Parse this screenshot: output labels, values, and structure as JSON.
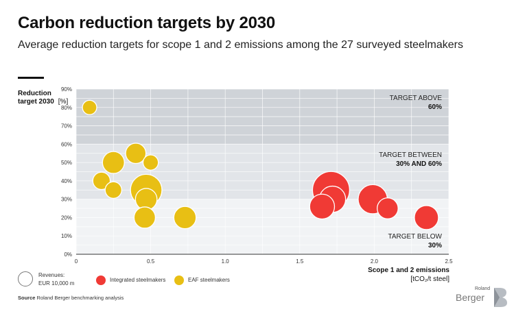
{
  "header": {
    "title": "Carbon reduction targets by 2030",
    "subtitle": "Average reduction targets for scope 1 and 2 emissions among the 27 surveyed steelmakers"
  },
  "chart_data": {
    "type": "scatter",
    "ylabel_bold": "Reduction target 2030",
    "ylabel_unit": "[%]",
    "xlabel_line1": "Scope 1 and 2 emissions",
    "xlabel_line2": "[tCO₂/t steel]",
    "xlim": [
      0,
      2.5
    ],
    "ylim": [
      0,
      90
    ],
    "x_ticks": [
      "0",
      "0.5",
      "1.0",
      "1.5",
      "2.0",
      "2.5"
    ],
    "y_ticks": [
      "0%",
      "10%",
      "20%",
      "30%",
      "40%",
      "50%",
      "60%",
      "70%",
      "80%",
      "90%"
    ],
    "grid": true,
    "bands": [
      {
        "from": 60,
        "to": 90,
        "line1": "TARGET ABOVE",
        "line2": "60%",
        "color": "#cfd3d8"
      },
      {
        "from": 30,
        "to": 60,
        "line1": "TARGET BETWEEN",
        "line2": "30% AND 60%",
        "color": "#e2e5e9"
      },
      {
        "from": 0,
        "to": 30,
        "line1": "TARGET BELOW",
        "line2": "30%",
        "color": "#f1f3f5"
      }
    ],
    "series": [
      {
        "name": "Integrated steelmakers",
        "color": "#f03a35",
        "points": [
          {
            "x": 1.71,
            "y": 35,
            "size": 1.0
          },
          {
            "x": 1.72,
            "y": 30,
            "size": 0.5
          },
          {
            "x": 1.65,
            "y": 26,
            "size": 0.45
          },
          {
            "x": 1.99,
            "y": 30,
            "size": 0.62
          },
          {
            "x": 2.09,
            "y": 25,
            "size": 0.32
          },
          {
            "x": 2.35,
            "y": 20,
            "size": 0.42
          }
        ]
      },
      {
        "name": "EAF steelmakers",
        "color": "#e8bf14",
        "points": [
          {
            "x": 0.09,
            "y": 80,
            "size": 0.15
          },
          {
            "x": 0.25,
            "y": 50,
            "size": 0.35
          },
          {
            "x": 0.4,
            "y": 55,
            "size": 0.3
          },
          {
            "x": 0.5,
            "y": 50,
            "size": 0.17
          },
          {
            "x": 0.17,
            "y": 40,
            "size": 0.22
          },
          {
            "x": 0.25,
            "y": 35,
            "size": 0.2
          },
          {
            "x": 0.47,
            "y": 35,
            "size": 0.72
          },
          {
            "x": 0.47,
            "y": 30,
            "size": 0.34
          },
          {
            "x": 0.46,
            "y": 20,
            "size": 0.33
          },
          {
            "x": 0.73,
            "y": 20,
            "size": 0.36
          }
        ]
      }
    ]
  },
  "legend": {
    "revenues_line1": "Revenues:",
    "revenues_line2": "EUR 10,000 m",
    "integrated": "Integrated steelmakers",
    "eaf": "EAF steelmakers",
    "integrated_color": "#f03a35",
    "eaf_color": "#e8bf14"
  },
  "footer": {
    "source_label": "Source",
    "source_text": "Roland Berger benchmarking analysis"
  },
  "logo": {
    "line1": "Roland",
    "line2": "Berger"
  }
}
